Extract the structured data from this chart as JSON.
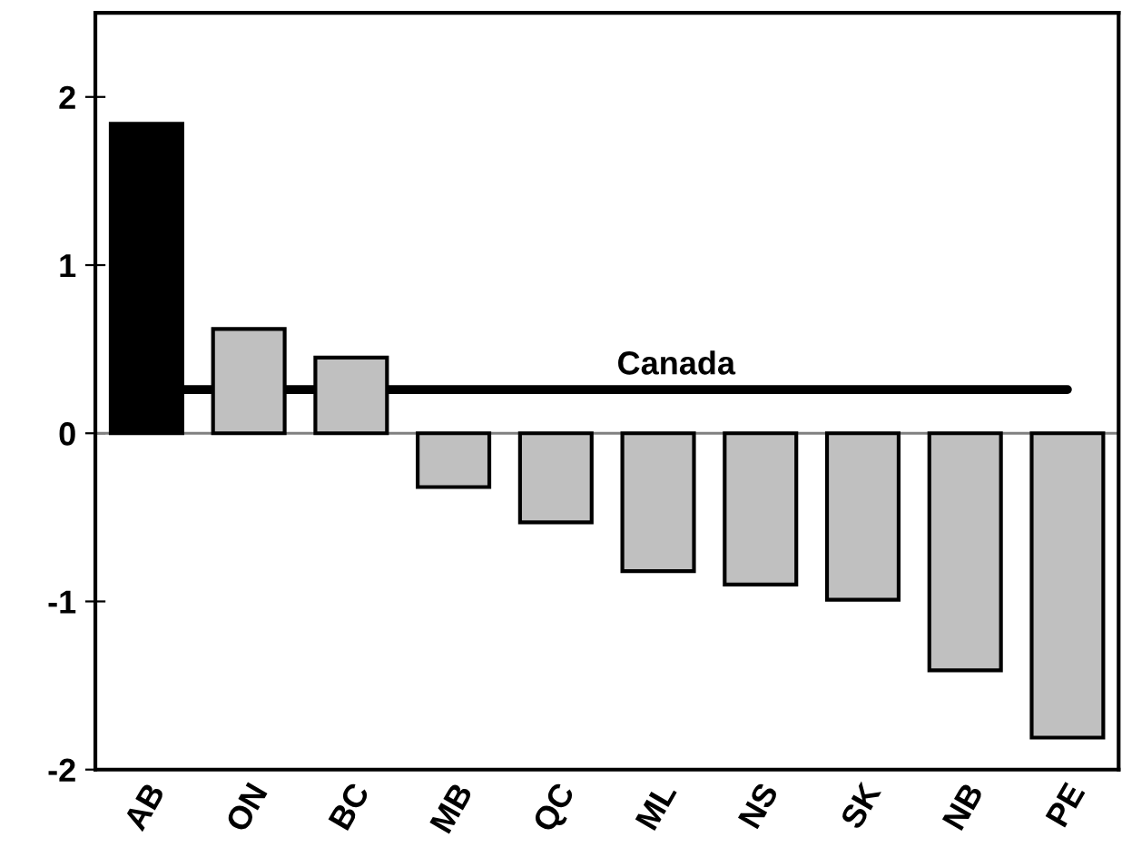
{
  "chart_data": {
    "type": "bar",
    "categories": [
      "AB",
      "ON",
      "BC",
      "MB",
      "QC",
      "ML",
      "NS",
      "SK",
      "NB",
      "PE"
    ],
    "values": [
      1.84,
      0.62,
      0.45,
      -0.32,
      -0.53,
      -0.82,
      -0.9,
      -0.99,
      -1.41,
      -1.81
    ],
    "colors": [
      "#000000",
      "#c0c0c0",
      "#c0c0c0",
      "#c0c0c0",
      "#c0c0c0",
      "#c0c0c0",
      "#c0c0c0",
      "#c0c0c0",
      "#c0c0c0",
      "#c0c0c0"
    ],
    "ylim": [
      -2,
      2.5
    ],
    "yticks": [
      -2,
      -1,
      0,
      1,
      2
    ],
    "ref_lines": [
      {
        "axis": "y",
        "value": 0,
        "color": "#808080"
      },
      {
        "axis": "y",
        "value": 0.26,
        "label": "Canada",
        "color": "#000000"
      }
    ],
    "grid": false,
    "legend": false
  }
}
